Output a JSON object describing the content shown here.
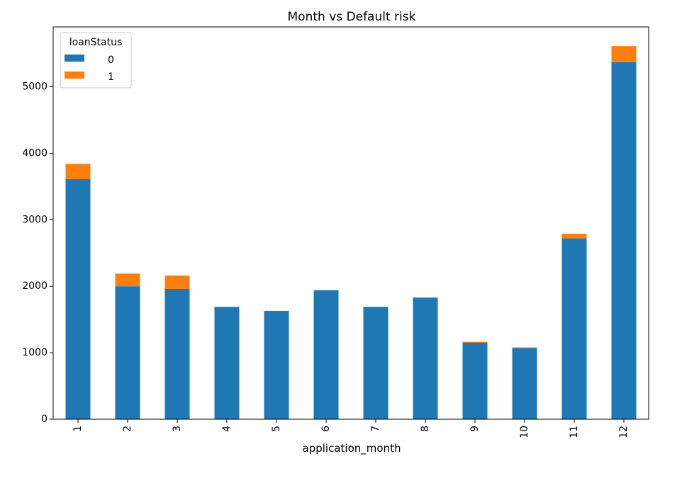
{
  "chart_data": {
    "type": "bar",
    "stacked": true,
    "title": "Month vs Default risk",
    "xlabel": "application_month",
    "ylabel": "",
    "categories": [
      "1",
      "2",
      "3",
      "4",
      "5",
      "6",
      "7",
      "8",
      "9",
      "10",
      "11",
      "12"
    ],
    "series": [
      {
        "name": "0",
        "color": "#1f77b4",
        "values": [
          3610,
          2000,
          1960,
          1690,
          1630,
          1940,
          1690,
          1830,
          1150,
          1070,
          2720,
          5370
        ]
      },
      {
        "name": "1",
        "color": "#ff7f0e",
        "values": [
          230,
          190,
          200,
          0,
          0,
          0,
          0,
          0,
          15,
          10,
          70,
          240
        ]
      }
    ],
    "ylim": [
      0,
      5900
    ],
    "yticks": [
      0,
      1000,
      2000,
      3000,
      4000,
      5000
    ],
    "grid": false,
    "legend": {
      "title": "loanStatus",
      "placement": "top-left"
    }
  }
}
